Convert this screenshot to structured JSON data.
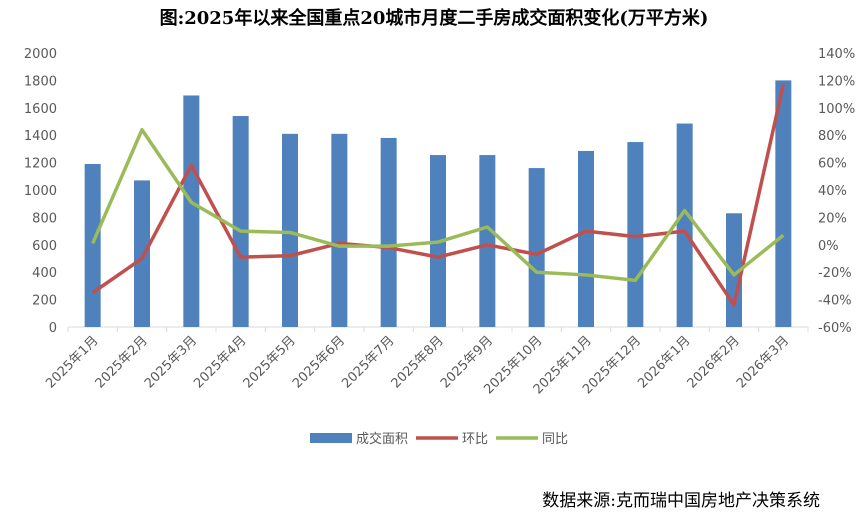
{
  "chart_data": {
    "type": "bar+line",
    "title": "图:2025年以来全国重点20城市月度二手房成交面积变化(万平方米)",
    "source": "数据来源:克而瑞中国房地产决策系统",
    "categories": [
      "2025年1月",
      "2025年2月",
      "2025年3月",
      "2025年4月",
      "2025年5月",
      "2025年6月",
      "2025年7月",
      "2025年8月",
      "2025年9月",
      "2025年10月",
      "2025年11月",
      "2025年12月",
      "2026年1月",
      "2026年2月",
      "2026年3月"
    ],
    "series": [
      {
        "name": "成交面积",
        "type": "bar",
        "axis": "left",
        "color": "#4F81BD",
        "values": [
          1190,
          1070,
          1690,
          1540,
          1410,
          1410,
          1380,
          1255,
          1255,
          1160,
          1285,
          1350,
          1485,
          830,
          1800
        ]
      },
      {
        "name": "环比",
        "type": "line",
        "axis": "right",
        "color": "#C0504D",
        "values": [
          -35,
          -10,
          58,
          -9,
          -8,
          1,
          -2,
          -9,
          0,
          -7,
          10,
          6,
          10,
          -44,
          117
        ]
      },
      {
        "name": "同比",
        "type": "line",
        "axis": "right",
        "color": "#9BBB59",
        "values": [
          1,
          84,
          31,
          10,
          9,
          -1,
          -1,
          2,
          13,
          -20,
          -22,
          -26,
          25,
          -22,
          7
        ]
      }
    ],
    "ylim_left": [
      0,
      2000
    ],
    "yticks_left": [
      "0",
      "200",
      "400",
      "600",
      "800",
      "1000",
      "1200",
      "1400",
      "1600",
      "1800",
      "2000"
    ],
    "ylim_right": [
      -60,
      140
    ],
    "yticks_right": [
      "-60%",
      "-40%",
      "-20%",
      "0%",
      "20%",
      "40%",
      "60%",
      "80%",
      "100%",
      "120%",
      "140%"
    ],
    "legend": "bottom"
  }
}
